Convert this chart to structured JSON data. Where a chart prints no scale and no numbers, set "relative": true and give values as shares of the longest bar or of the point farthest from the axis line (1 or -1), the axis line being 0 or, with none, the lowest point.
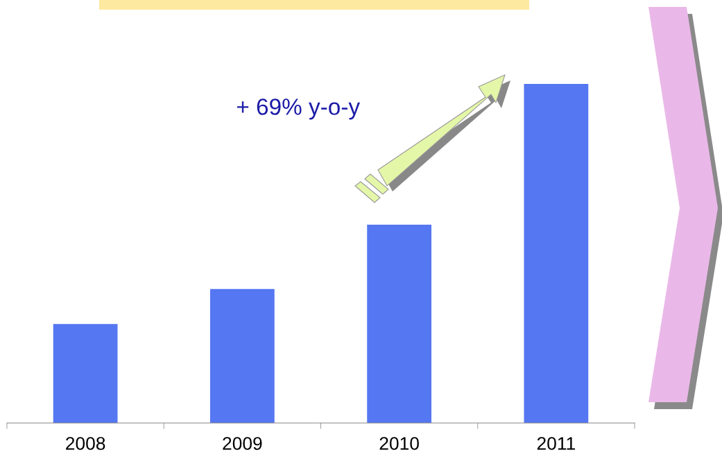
{
  "chart_data": {
    "type": "bar",
    "relative": true,
    "categories": [
      "2008",
      "2009",
      "2010",
      "2011"
    ],
    "values": [
      0.292,
      0.395,
      0.585,
      1
    ],
    "color": "#5577f2",
    "annotations": [
      "+ 69% y-o-y"
    ],
    "grid": false
  }
}
